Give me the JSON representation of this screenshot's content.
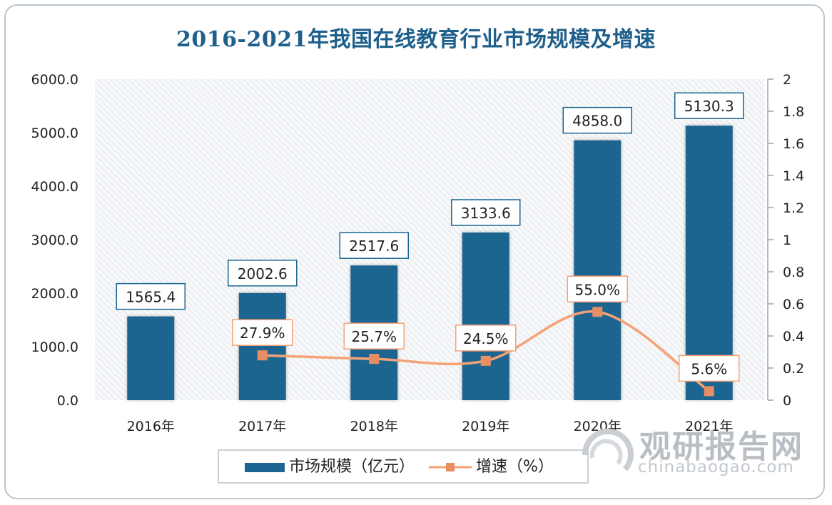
{
  "chart_data": {
    "type": "bar",
    "title": "2016-2021年我国在线教育行业市场规模及增速",
    "categories": [
      "2016年",
      "2017年",
      "2018年",
      "2019年",
      "2020年",
      "2021年"
    ],
    "series": [
      {
        "name": "市场规模（亿元）",
        "type": "bar",
        "axis": "left",
        "values": [
          1565.4,
          2002.6,
          2517.6,
          3133.6,
          4858.0,
          5130.3
        ],
        "labels": [
          "1565.4",
          "2002.6",
          "2517.6",
          "3133.6",
          "4858.0",
          "5130.3"
        ],
        "color": "#1a6591"
      },
      {
        "name": "增速（%）",
        "type": "line",
        "axis": "right",
        "values": [
          null,
          0.279,
          0.257,
          0.245,
          0.55,
          0.056
        ],
        "labels": [
          "",
          "27.9%",
          "25.7%",
          "24.5%",
          "55.0%",
          "5.6%"
        ],
        "color": "#f4a276"
      }
    ],
    "y_left": {
      "lim": [
        0,
        6000
      ],
      "ticks": [
        0,
        1000,
        2000,
        3000,
        4000,
        5000,
        6000
      ],
      "tick_labels": [
        "0.0",
        "1000.0",
        "2000.0",
        "3000.0",
        "4000.0",
        "5000.0",
        "6000.0"
      ]
    },
    "y_right": {
      "lim": [
        0,
        2
      ],
      "ticks": [
        0,
        0.2,
        0.4,
        0.6,
        0.8,
        1,
        1.2,
        1.4,
        1.6,
        1.8,
        2
      ],
      "tick_labels": [
        "0",
        "0.2",
        "0.4",
        "0.6",
        "0.8",
        "1",
        "1.2",
        "1.4",
        "1.6",
        "1.8",
        "2"
      ]
    },
    "grid": false,
    "legend": "bottom"
  },
  "watermark": {
    "cn": "观研报告网",
    "en": "chinabaogao.com"
  }
}
